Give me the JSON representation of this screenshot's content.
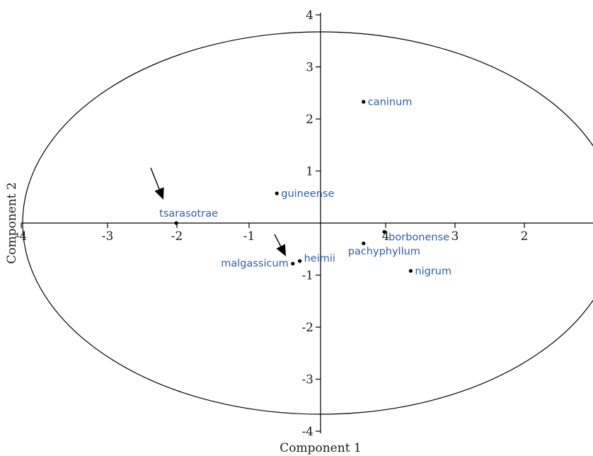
{
  "chart_data": {
    "type": "scatter",
    "xlabel": "Component 1",
    "ylabel": "Component 2",
    "xlim": [
      -4,
      4
    ],
    "ylim": [
      -4,
      4
    ],
    "x_tick_labels": [
      "-4",
      "-3",
      "-2",
      "-1",
      "4",
      "3",
      "2"
    ],
    "y_tick_labels": [
      "4",
      "3",
      "2",
      "1",
      "-1",
      "-2",
      "-3",
      "-4"
    ],
    "grid": false,
    "correlation_circle": true,
    "points": [
      {
        "name": "caninum",
        "x": 0.62,
        "y": 2.33
      },
      {
        "name": "guineense",
        "x": -0.63,
        "y": 0.57
      },
      {
        "name": "tsarasotrae",
        "x": -2.08,
        "y": 0.0
      },
      {
        "name": "borbonense",
        "x": 0.92,
        "y": -0.17
      },
      {
        "name": "pachyphyllum",
        "x": 0.62,
        "y": -0.39
      },
      {
        "name": "heimii",
        "x": -0.3,
        "y": -0.73
      },
      {
        "name": "malgassicum",
        "x": -0.4,
        "y": -0.78
      },
      {
        "name": "nigrum",
        "x": 1.3,
        "y": -0.92
      }
    ],
    "annotations": [
      {
        "type": "arrow",
        "target": "tsarasotrae"
      },
      {
        "type": "arrow",
        "target": "malgassicum"
      }
    ]
  }
}
